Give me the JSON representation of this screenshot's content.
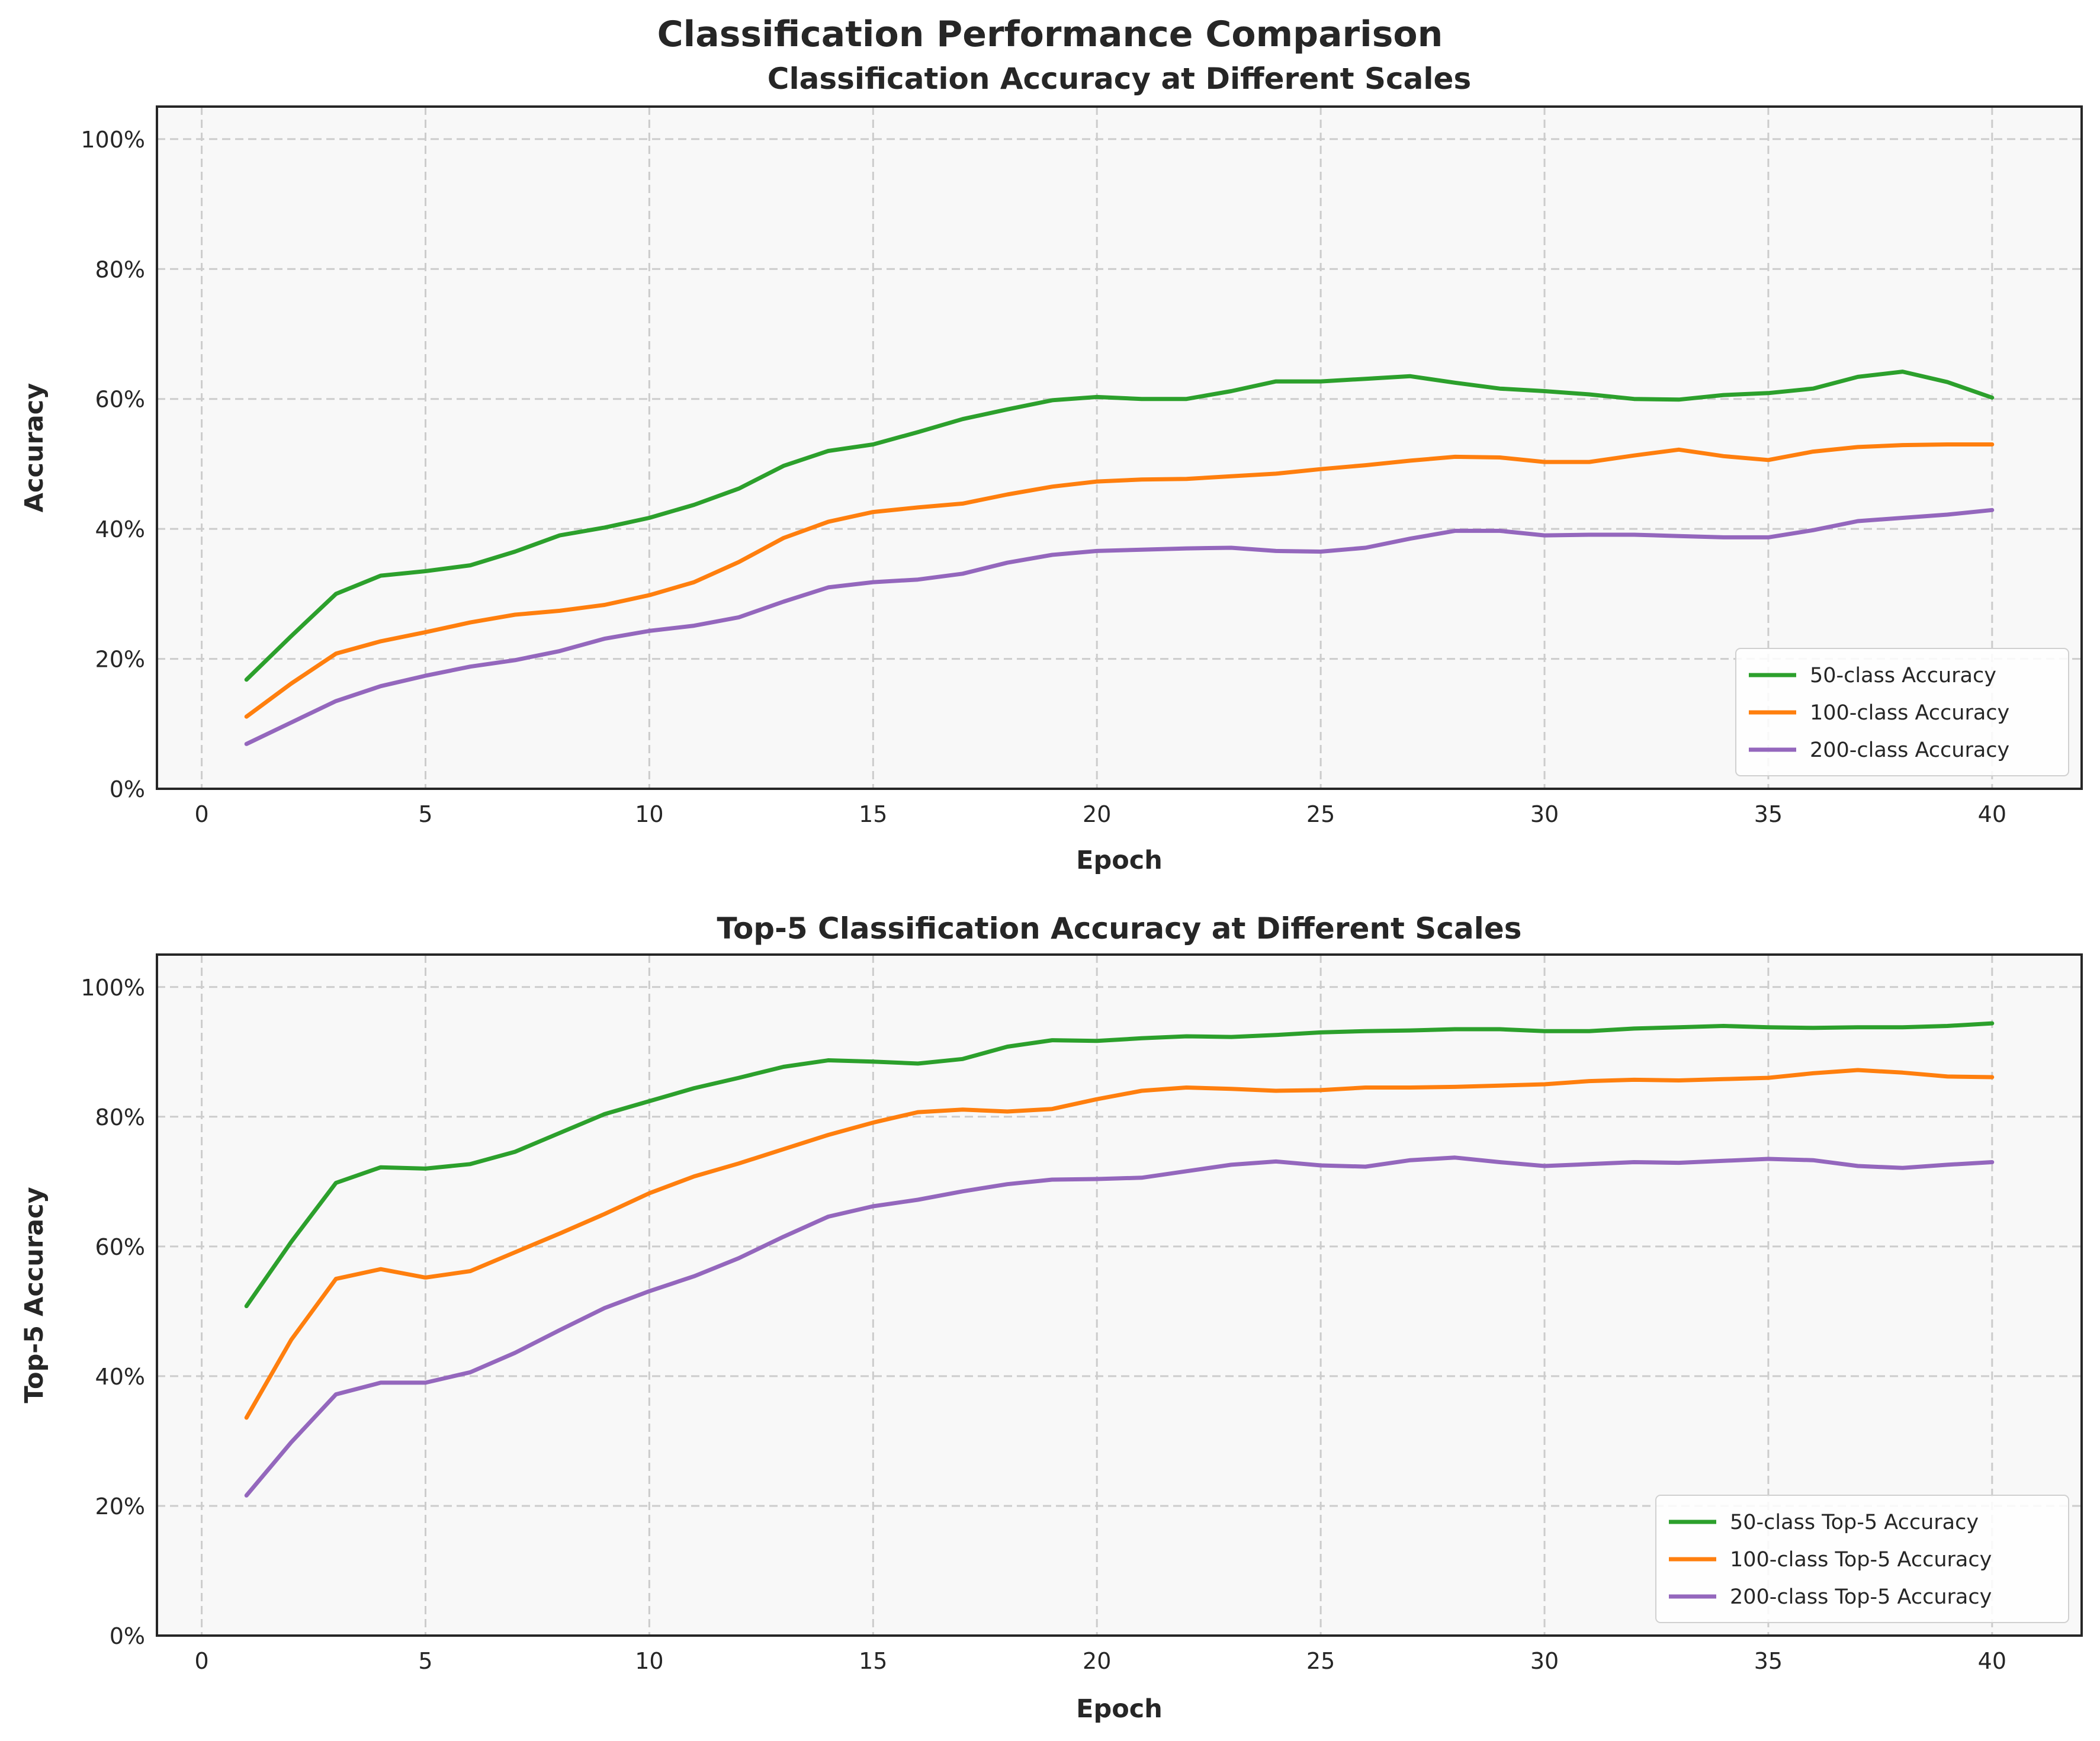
{
  "figure": {
    "title": "Classification Performance Comparison"
  },
  "chart_data": [
    {
      "type": "line",
      "title": "Classification Accuracy at Different Scales",
      "xlabel": "Epoch",
      "ylabel": "Accuracy",
      "xlim": [
        -1,
        42
      ],
      "ylim": [
        0,
        1.05
      ],
      "xticks": [
        0,
        5,
        10,
        15,
        20,
        25,
        30,
        35,
        40
      ],
      "xtick_labels": [
        "0",
        "5",
        "10",
        "15",
        "20",
        "25",
        "30",
        "35",
        "40"
      ],
      "yticks": [
        0,
        0.2,
        0.4,
        0.6,
        0.8,
        1.0
      ],
      "ytick_labels": [
        "0%",
        "20%",
        "40%",
        "60%",
        "80%",
        "100%"
      ],
      "grid": true,
      "legend_position": "lower-right",
      "x": [
        1,
        2,
        3,
        4,
        5,
        6,
        7,
        8,
        9,
        10,
        11,
        12,
        13,
        14,
        15,
        16,
        17,
        18,
        19,
        20,
        21,
        22,
        23,
        24,
        25,
        26,
        27,
        28,
        29,
        30,
        31,
        32,
        33,
        34,
        35,
        36,
        37,
        38,
        39,
        40
      ],
      "series": [
        {
          "name": "50-class Accuracy",
          "color": "#2ca02c",
          "values": [
            0.168,
            0.235,
            0.3,
            0.328,
            0.335,
            0.344,
            0.365,
            0.39,
            0.402,
            0.417,
            0.437,
            0.462,
            0.497,
            0.52,
            0.53,
            0.549,
            0.569,
            0.584,
            0.598,
            0.603,
            0.6,
            0.6,
            0.612,
            0.627,
            0.627,
            0.631,
            0.635,
            0.625,
            0.616,
            0.612,
            0.607,
            0.6,
            0.599,
            0.606,
            0.609,
            0.616,
            0.634,
            0.642,
            0.626,
            0.602
          ]
        },
        {
          "name": "100-class Accuracy",
          "color": "#ff7f0e",
          "values": [
            0.111,
            0.162,
            0.208,
            0.227,
            0.241,
            0.256,
            0.268,
            0.274,
            0.283,
            0.298,
            0.318,
            0.349,
            0.386,
            0.411,
            0.426,
            0.433,
            0.439,
            0.453,
            0.465,
            0.473,
            0.476,
            0.477,
            0.481,
            0.485,
            0.492,
            0.498,
            0.505,
            0.511,
            0.51,
            0.503,
            0.503,
            0.513,
            0.522,
            0.512,
            0.506,
            0.519,
            0.526,
            0.529,
            0.53,
            0.53
          ]
        },
        {
          "name": "200-class Accuracy",
          "color": "#9467bd",
          "values": [
            0.069,
            0.102,
            0.135,
            0.158,
            0.174,
            0.188,
            0.198,
            0.212,
            0.231,
            0.243,
            0.251,
            0.264,
            0.288,
            0.31,
            0.318,
            0.322,
            0.331,
            0.348,
            0.36,
            0.366,
            0.368,
            0.37,
            0.371,
            0.366,
            0.365,
            0.371,
            0.385,
            0.397,
            0.397,
            0.39,
            0.391,
            0.391,
            0.389,
            0.387,
            0.387,
            0.398,
            0.412,
            0.417,
            0.422,
            0.429
          ]
        }
      ]
    },
    {
      "type": "line",
      "title": "Top-5 Classification Accuracy at Different Scales",
      "xlabel": "Epoch",
      "ylabel": "Top-5 Accuracy",
      "xlim": [
        -1,
        42
      ],
      "ylim": [
        0,
        1.05
      ],
      "xticks": [
        0,
        5,
        10,
        15,
        20,
        25,
        30,
        35,
        40
      ],
      "xtick_labels": [
        "0",
        "5",
        "10",
        "15",
        "20",
        "25",
        "30",
        "35",
        "40"
      ],
      "yticks": [
        0,
        0.2,
        0.4,
        0.6,
        0.8,
        1.0
      ],
      "ytick_labels": [
        "0%",
        "20%",
        "40%",
        "60%",
        "80%",
        "100%"
      ],
      "grid": true,
      "legend_position": "lower-right",
      "x": [
        1,
        2,
        3,
        4,
        5,
        6,
        7,
        8,
        9,
        10,
        11,
        12,
        13,
        14,
        15,
        16,
        17,
        18,
        19,
        20,
        21,
        22,
        23,
        24,
        25,
        26,
        27,
        28,
        29,
        30,
        31,
        32,
        33,
        34,
        35,
        36,
        37,
        38,
        39,
        40
      ],
      "series": [
        {
          "name": "50-class Top-5 Accuracy",
          "color": "#2ca02c",
          "values": [
            0.508,
            0.607,
            0.698,
            0.722,
            0.72,
            0.727,
            0.746,
            0.775,
            0.804,
            0.824,
            0.844,
            0.86,
            0.877,
            0.887,
            0.885,
            0.882,
            0.889,
            0.908,
            0.918,
            0.917,
            0.921,
            0.924,
            0.923,
            0.926,
            0.93,
            0.932,
            0.933,
            0.935,
            0.935,
            0.932,
            0.932,
            0.936,
            0.938,
            0.94,
            0.938,
            0.937,
            0.938,
            0.938,
            0.94,
            0.944
          ]
        },
        {
          "name": "100-class Top-5 Accuracy",
          "color": "#ff7f0e",
          "values": [
            0.336,
            0.456,
            0.55,
            0.565,
            0.552,
            0.562,
            0.591,
            0.62,
            0.65,
            0.682,
            0.708,
            0.728,
            0.75,
            0.772,
            0.791,
            0.807,
            0.811,
            0.808,
            0.812,
            0.827,
            0.84,
            0.845,
            0.843,
            0.84,
            0.841,
            0.845,
            0.845,
            0.846,
            0.848,
            0.85,
            0.855,
            0.857,
            0.856,
            0.858,
            0.86,
            0.867,
            0.872,
            0.868,
            0.862,
            0.861
          ]
        },
        {
          "name": "200-class Top-5 Accuracy",
          "color": "#9467bd",
          "values": [
            0.216,
            0.298,
            0.372,
            0.39,
            0.39,
            0.406,
            0.436,
            0.471,
            0.505,
            0.531,
            0.554,
            0.582,
            0.615,
            0.646,
            0.662,
            0.672,
            0.685,
            0.696,
            0.703,
            0.704,
            0.706,
            0.716,
            0.726,
            0.731,
            0.725,
            0.723,
            0.733,
            0.737,
            0.73,
            0.724,
            0.727,
            0.73,
            0.729,
            0.732,
            0.735,
            0.733,
            0.724,
            0.721,
            0.726,
            0.73
          ]
        }
      ]
    }
  ]
}
